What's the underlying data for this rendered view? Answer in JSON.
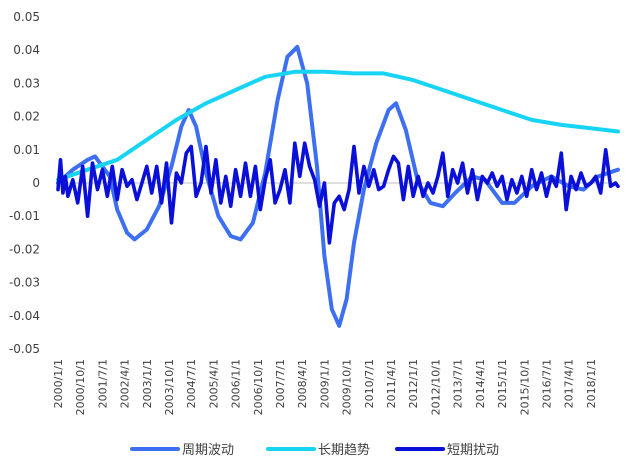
{
  "chart_data": {
    "type": "line",
    "title": "",
    "xlabel": "",
    "ylabel": "",
    "ylim": [
      -0.05,
      0.05
    ],
    "yticks": [
      "0.05",
      "0.04",
      "0.03",
      "0.02",
      "0.01",
      "0",
      "-0.01",
      "-0.02",
      "-0.03",
      "-0.04",
      "-0.05"
    ],
    "xlim": [
      "2000/1/1",
      "2018/12/1"
    ],
    "xticks": [
      "2000/1/1",
      "2000/10/1",
      "2001/7/1",
      "2002/4/1",
      "2003/1/1",
      "2003/10/1",
      "2004/7/1",
      "2005/4/1",
      "2006/1/1",
      "2006/10/1",
      "2007/7/1",
      "2008/4/1",
      "2009/1/1",
      "2009/10/1",
      "2010/7/1",
      "2011/4/1",
      "2012/1/1",
      "2012/10/1",
      "2013/7/1",
      "2014/4/1",
      "2015/1/1",
      "2015/10/1",
      "2016/7/1",
      "2017/4/1",
      "2018/1/1"
    ],
    "legend": "bottom",
    "grid": false,
    "series": [
      {
        "name": "周期波动",
        "color": "#3d6ff0",
        "points": [
          [
            "2000/1/1",
            0.0
          ],
          [
            "2000/7/1",
            0.004
          ],
          [
            "2001/1/1",
            0.007
          ],
          [
            "2001/4/1",
            0.008
          ],
          [
            "2001/10/1",
            0.002
          ],
          [
            "2002/1/1",
            -0.008
          ],
          [
            "2002/5/1",
            -0.015
          ],
          [
            "2002/8/1",
            -0.017
          ],
          [
            "2003/1/1",
            -0.014
          ],
          [
            "2003/6/1",
            -0.007
          ],
          [
            "2003/11/1",
            0.005
          ],
          [
            "2004/3/1",
            0.017
          ],
          [
            "2004/6/1",
            0.022
          ],
          [
            "2004/9/1",
            0.017
          ],
          [
            "2005/1/1",
            0.003
          ],
          [
            "2005/6/1",
            -0.01
          ],
          [
            "2005/11/1",
            -0.016
          ],
          [
            "2006/3/1",
            -0.017
          ],
          [
            "2006/8/1",
            -0.012
          ],
          [
            "2007/1/1",
            0.003
          ],
          [
            "2007/6/1",
            0.025
          ],
          [
            "2007/10/1",
            0.038
          ],
          [
            "2008/2/1",
            0.041
          ],
          [
            "2008/6/1",
            0.03
          ],
          [
            "2008/10/1",
            0.005
          ],
          [
            "2009/1/1",
            -0.022
          ],
          [
            "2009/4/1",
            -0.038
          ],
          [
            "2009/7/1",
            -0.043
          ],
          [
            "2009/10/1",
            -0.035
          ],
          [
            "2010/1/1",
            -0.018
          ],
          [
            "2010/5/1",
            -0.002
          ],
          [
            "2010/10/1",
            0.012
          ],
          [
            "2011/3/1",
            0.022
          ],
          [
            "2011/6/1",
            0.024
          ],
          [
            "2011/10/1",
            0.016
          ],
          [
            "2012/3/1",
            0.0
          ],
          [
            "2012/8/1",
            -0.006
          ],
          [
            "2013/1/1",
            -0.007
          ],
          [
            "2013/6/1",
            -0.003
          ],
          [
            "2014/1/1",
            0.002
          ],
          [
            "2014/6/1",
            0.001
          ],
          [
            "2015/1/1",
            -0.006
          ],
          [
            "2015/6/1",
            -0.006
          ],
          [
            "2016/1/1",
            -0.001
          ],
          [
            "2016/9/1",
            0.002
          ],
          [
            "2017/4/1",
            -0.001
          ],
          [
            "2017/10/1",
            -0.002
          ],
          [
            "2018/4/1",
            0.002
          ],
          [
            "2018/12/1",
            0.004
          ]
        ]
      },
      {
        "name": "长期趋势",
        "color": "#17d4f5",
        "points": [
          [
            "2000/1/1",
            0.001
          ],
          [
            "2001/1/1",
            0.004
          ],
          [
            "2002/1/1",
            0.007
          ],
          [
            "2003/1/1",
            0.013
          ],
          [
            "2004/1/1",
            0.019
          ],
          [
            "2005/1/1",
            0.024
          ],
          [
            "2006/1/1",
            0.028
          ],
          [
            "2007/1/1",
            0.032
          ],
          [
            "2008/1/1",
            0.0335
          ],
          [
            "2009/1/1",
            0.0335
          ],
          [
            "2010/1/1",
            0.033
          ],
          [
            "2011/1/1",
            0.033
          ],
          [
            "2012/1/1",
            0.031
          ],
          [
            "2013/1/1",
            0.028
          ],
          [
            "2014/1/1",
            0.025
          ],
          [
            "2015/1/1",
            0.022
          ],
          [
            "2016/1/1",
            0.019
          ],
          [
            "2017/1/1",
            0.0175
          ],
          [
            "2018/1/1",
            0.0165
          ],
          [
            "2018/12/1",
            0.0155
          ]
        ]
      },
      {
        "name": "短期扰动",
        "color": "#0b10d8",
        "points": [
          [
            "2000/1/1",
            -0.002
          ],
          [
            "2000/2/1",
            0.007
          ],
          [
            "2000/3/1",
            -0.003
          ],
          [
            "2000/4/1",
            0.002
          ],
          [
            "2000/5/1",
            -0.004
          ],
          [
            "2000/7/1",
            0.001
          ],
          [
            "2000/9/1",
            -0.006
          ],
          [
            "2000/11/1",
            0.005
          ],
          [
            "2001/1/1",
            -0.01
          ],
          [
            "2001/3/1",
            0.006
          ],
          [
            "2001/5/1",
            -0.002
          ],
          [
            "2001/7/1",
            0.004
          ],
          [
            "2001/9/1",
            -0.004
          ],
          [
            "2001/11/1",
            0.005
          ],
          [
            "2002/1/1",
            -0.005
          ],
          [
            "2002/3/1",
            0.004
          ],
          [
            "2002/5/1",
            -0.001
          ],
          [
            "2002/7/1",
            0.001
          ],
          [
            "2002/9/1",
            -0.005
          ],
          [
            "2002/11/1",
            0.0
          ],
          [
            "2003/1/1",
            0.005
          ],
          [
            "2003/3/1",
            -0.003
          ],
          [
            "2003/5/1",
            0.005
          ],
          [
            "2003/7/1",
            -0.006
          ],
          [
            "2003/9/1",
            0.006
          ],
          [
            "2003/11/1",
            -0.012
          ],
          [
            "2004/1/1",
            0.003
          ],
          [
            "2004/3/1",
            0.0
          ],
          [
            "2004/5/1",
            0.009
          ],
          [
            "2004/7/1",
            0.011
          ],
          [
            "2004/9/1",
            -0.004
          ],
          [
            "2004/11/1",
            0.0
          ],
          [
            "2005/1/1",
            0.011
          ],
          [
            "2005/3/1",
            -0.003
          ],
          [
            "2005/5/1",
            0.007
          ],
          [
            "2005/7/1",
            -0.006
          ],
          [
            "2005/9/1",
            0.002
          ],
          [
            "2005/11/1",
            -0.007
          ],
          [
            "2006/1/1",
            0.004
          ],
          [
            "2006/3/1",
            -0.004
          ],
          [
            "2006/5/1",
            0.006
          ],
          [
            "2006/7/1",
            -0.004
          ],
          [
            "2006/9/1",
            0.005
          ],
          [
            "2006/11/1",
            -0.008
          ],
          [
            "2007/1/1",
            0.001
          ],
          [
            "2007/3/1",
            0.007
          ],
          [
            "2007/5/1",
            -0.006
          ],
          [
            "2007/7/1",
            -0.002
          ],
          [
            "2007/9/1",
            0.004
          ],
          [
            "2007/11/1",
            -0.006
          ],
          [
            "2008/1/1",
            0.012
          ],
          [
            "2008/3/1",
            0.002
          ],
          [
            "2008/5/1",
            0.012
          ],
          [
            "2008/7/1",
            0.005
          ],
          [
            "2008/9/1",
            0.001
          ],
          [
            "2008/11/1",
            -0.007
          ],
          [
            "2009/1/1",
            0.0
          ],
          [
            "2009/3/1",
            -0.018
          ],
          [
            "2009/5/1",
            -0.006
          ],
          [
            "2009/7/1",
            -0.004
          ],
          [
            "2009/9/1",
            -0.008
          ],
          [
            "2009/11/1",
            -0.002
          ],
          [
            "2010/1/1",
            0.011
          ],
          [
            "2010/3/1",
            -0.003
          ],
          [
            "2010/5/1",
            0.005
          ],
          [
            "2010/7/1",
            -0.001
          ],
          [
            "2010/9/1",
            0.004
          ],
          [
            "2010/11/1",
            -0.002
          ],
          [
            "2011/1/1",
            -0.001
          ],
          [
            "2011/3/1",
            0.004
          ],
          [
            "2011/5/1",
            0.008
          ],
          [
            "2011/7/1",
            0.006
          ],
          [
            "2011/9/1",
            -0.005
          ],
          [
            "2011/11/1",
            0.005
          ],
          [
            "2012/1/1",
            -0.004
          ],
          [
            "2012/3/1",
            0.002
          ],
          [
            "2012/5/1",
            -0.004
          ],
          [
            "2012/7/1",
            0.0
          ],
          [
            "2012/9/1",
            -0.003
          ],
          [
            "2012/11/1",
            0.002
          ],
          [
            "2013/1/1",
            0.009
          ],
          [
            "2013/3/1",
            -0.004
          ],
          [
            "2013/5/1",
            0.004
          ],
          [
            "2013/7/1",
            0.0
          ],
          [
            "2013/9/1",
            0.006
          ],
          [
            "2013/11/1",
            -0.003
          ],
          [
            "2014/1/1",
            0.004
          ],
          [
            "2014/3/1",
            -0.005
          ],
          [
            "2014/5/1",
            0.002
          ],
          [
            "2014/7/1",
            0.0
          ],
          [
            "2014/9/1",
            0.003
          ],
          [
            "2014/11/1",
            -0.001
          ],
          [
            "2015/1/1",
            0.002
          ],
          [
            "2015/3/1",
            -0.005
          ],
          [
            "2015/5/1",
            0.001
          ],
          [
            "2015/7/1",
            -0.003
          ],
          [
            "2015/9/1",
            0.002
          ],
          [
            "2015/11/1",
            -0.004
          ],
          [
            "2016/1/1",
            0.004
          ],
          [
            "2016/3/1",
            -0.002
          ],
          [
            "2016/5/1",
            0.003
          ],
          [
            "2016/7/1",
            -0.004
          ],
          [
            "2016/9/1",
            0.002
          ],
          [
            "2016/11/1",
            -0.001
          ],
          [
            "2017/1/1",
            0.009
          ],
          [
            "2017/3/1",
            -0.008
          ],
          [
            "2017/5/1",
            0.002
          ],
          [
            "2017/7/1",
            -0.002
          ],
          [
            "2017/9/1",
            0.003
          ],
          [
            "2017/11/1",
            -0.001
          ],
          [
            "2018/1/1",
            0.0
          ],
          [
            "2018/3/1",
            0.002
          ],
          [
            "2018/5/1",
            -0.003
          ],
          [
            "2018/7/1",
            0.01
          ],
          [
            "2018/9/1",
            -0.001
          ],
          [
            "2018/11/1",
            0.0
          ],
          [
            "2018/12/1",
            -0.001
          ]
        ]
      }
    ]
  }
}
